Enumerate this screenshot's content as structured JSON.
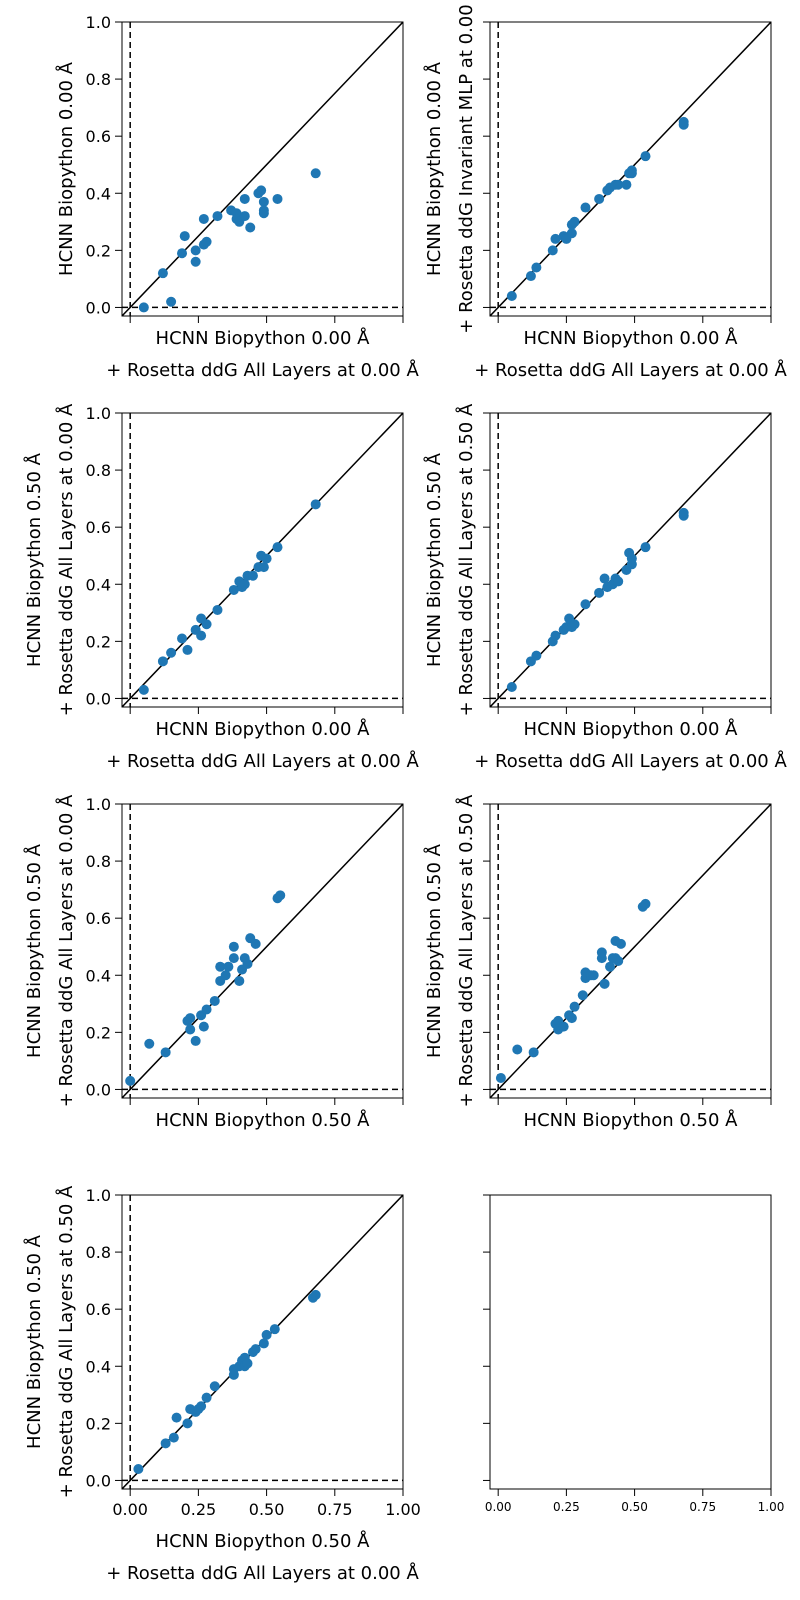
{
  "colors": {
    "point": "#1f77b4",
    "identity_line": "#000000",
    "zero_line": "#000000"
  },
  "chart_data": [
    {
      "type": "scatter",
      "xlabel": [
        "HCNN Biopython 0.00 Å",
        "+ Rosetta ddG All Layers at 0.00 Å"
      ],
      "ylabel": [
        "HCNN Biopython 0.00 Å"
      ],
      "xlim": [
        -0.03,
        1.0
      ],
      "ylim": [
        -0.03,
        1.0
      ],
      "xticks": [
        0.0,
        0.25,
        0.5,
        0.75,
        1.0
      ],
      "yticks": [
        0.0,
        0.2,
        0.4,
        0.6,
        0.8,
        1.0
      ],
      "show_x_ticklabels": false,
      "show_y_ticklabels": true,
      "points": [
        [
          0.05,
          0.0
        ],
        [
          0.12,
          0.12
        ],
        [
          0.15,
          0.02
        ],
        [
          0.19,
          0.19
        ],
        [
          0.2,
          0.25
        ],
        [
          0.24,
          0.2
        ],
        [
          0.24,
          0.16
        ],
        [
          0.27,
          0.22
        ],
        [
          0.27,
          0.31
        ],
        [
          0.28,
          0.23
        ],
        [
          0.32,
          0.32
        ],
        [
          0.37,
          0.34
        ],
        [
          0.39,
          0.33
        ],
        [
          0.39,
          0.31
        ],
        [
          0.4,
          0.3
        ],
        [
          0.42,
          0.32
        ],
        [
          0.42,
          0.38
        ],
        [
          0.44,
          0.28
        ],
        [
          0.47,
          0.4
        ],
        [
          0.48,
          0.41
        ],
        [
          0.49,
          0.37
        ],
        [
          0.49,
          0.34
        ],
        [
          0.49,
          0.33
        ],
        [
          0.54,
          0.38
        ],
        [
          0.68,
          0.47
        ]
      ]
    },
    {
      "type": "scatter",
      "xlabel": [
        "HCNN Biopython 0.00 Å",
        "+ Rosetta ddG All Layers at 0.00 Å"
      ],
      "ylabel": [
        "HCNN Biopython 0.00 Å",
        "+ Rosetta ddG Invariant MLP at 0.00"
      ],
      "xlim": [
        -0.03,
        1.0
      ],
      "ylim": [
        -0.03,
        1.0
      ],
      "xticks": [
        0.0,
        0.25,
        0.5,
        0.75,
        1.0
      ],
      "yticks": [
        0.0,
        0.2,
        0.4,
        0.6,
        0.8,
        1.0
      ],
      "show_x_ticklabels": false,
      "show_y_ticklabels": false,
      "points": [
        [
          0.05,
          0.04
        ],
        [
          0.12,
          0.11
        ],
        [
          0.14,
          0.14
        ],
        [
          0.2,
          0.2
        ],
        [
          0.21,
          0.24
        ],
        [
          0.24,
          0.25
        ],
        [
          0.25,
          0.24
        ],
        [
          0.27,
          0.26
        ],
        [
          0.27,
          0.29
        ],
        [
          0.28,
          0.3
        ],
        [
          0.32,
          0.35
        ],
        [
          0.37,
          0.38
        ],
        [
          0.4,
          0.41
        ],
        [
          0.41,
          0.42
        ],
        [
          0.43,
          0.43
        ],
        [
          0.44,
          0.43
        ],
        [
          0.47,
          0.43
        ],
        [
          0.48,
          0.47
        ],
        [
          0.49,
          0.48
        ],
        [
          0.49,
          0.47
        ],
        [
          0.54,
          0.53
        ],
        [
          0.68,
          0.64
        ],
        [
          0.68,
          0.65
        ]
      ]
    },
    {
      "type": "scatter",
      "xlabel": [
        "HCNN Biopython 0.00 Å",
        "+ Rosetta ddG All Layers at 0.00 Å"
      ],
      "ylabel": [
        "HCNN Biopython 0.50 Å",
        "+ Rosetta ddG All Layers at 0.00 Å"
      ],
      "xlim": [
        -0.03,
        1.0
      ],
      "ylim": [
        -0.03,
        1.0
      ],
      "xticks": [
        0.0,
        0.25,
        0.5,
        0.75,
        1.0
      ],
      "yticks": [
        0.0,
        0.2,
        0.4,
        0.6,
        0.8,
        1.0
      ],
      "show_x_ticklabels": false,
      "show_y_ticklabels": true,
      "points": [
        [
          0.05,
          0.03
        ],
        [
          0.12,
          0.13
        ],
        [
          0.15,
          0.16
        ],
        [
          0.19,
          0.21
        ],
        [
          0.21,
          0.17
        ],
        [
          0.24,
          0.24
        ],
        [
          0.26,
          0.22
        ],
        [
          0.26,
          0.28
        ],
        [
          0.28,
          0.26
        ],
        [
          0.32,
          0.31
        ],
        [
          0.38,
          0.38
        ],
        [
          0.4,
          0.41
        ],
        [
          0.41,
          0.39
        ],
        [
          0.42,
          0.4
        ],
        [
          0.43,
          0.43
        ],
        [
          0.45,
          0.43
        ],
        [
          0.47,
          0.46
        ],
        [
          0.48,
          0.5
        ],
        [
          0.49,
          0.46
        ],
        [
          0.5,
          0.49
        ],
        [
          0.54,
          0.53
        ],
        [
          0.68,
          0.68
        ]
      ]
    },
    {
      "type": "scatter",
      "xlabel": [
        "HCNN Biopython 0.00 Å",
        "+ Rosetta ddG All Layers at 0.00 Å"
      ],
      "ylabel": [
        "HCNN Biopython 0.50 Å",
        "+ Rosetta ddG All Layers at 0.50 Å"
      ],
      "xlim": [
        -0.03,
        1.0
      ],
      "ylim": [
        -0.03,
        1.0
      ],
      "xticks": [
        0.0,
        0.25,
        0.5,
        0.75,
        1.0
      ],
      "yticks": [
        0.0,
        0.2,
        0.4,
        0.6,
        0.8,
        1.0
      ],
      "show_x_ticklabels": false,
      "show_y_ticklabels": false,
      "points": [
        [
          0.05,
          0.04
        ],
        [
          0.12,
          0.13
        ],
        [
          0.14,
          0.15
        ],
        [
          0.2,
          0.2
        ],
        [
          0.21,
          0.22
        ],
        [
          0.24,
          0.24
        ],
        [
          0.25,
          0.25
        ],
        [
          0.26,
          0.28
        ],
        [
          0.27,
          0.25
        ],
        [
          0.28,
          0.26
        ],
        [
          0.32,
          0.33
        ],
        [
          0.37,
          0.37
        ],
        [
          0.39,
          0.42
        ],
        [
          0.4,
          0.39
        ],
        [
          0.42,
          0.4
        ],
        [
          0.43,
          0.42
        ],
        [
          0.44,
          0.41
        ],
        [
          0.47,
          0.45
        ],
        [
          0.48,
          0.51
        ],
        [
          0.49,
          0.47
        ],
        [
          0.49,
          0.49
        ],
        [
          0.54,
          0.53
        ],
        [
          0.68,
          0.64
        ],
        [
          0.68,
          0.65
        ]
      ]
    },
    {
      "type": "scatter",
      "xlabel": [
        "HCNN Biopython 0.50 Å"
      ],
      "ylabel": [
        "HCNN Biopython 0.50 Å",
        "+ Rosetta ddG All Layers at 0.00 Å"
      ],
      "xlim": [
        -0.03,
        1.0
      ],
      "ylim": [
        -0.03,
        1.0
      ],
      "xticks": [
        0.0,
        0.25,
        0.5,
        0.75,
        1.0
      ],
      "yticks": [
        0.0,
        0.2,
        0.4,
        0.6,
        0.8,
        1.0
      ],
      "show_x_ticklabels": false,
      "show_y_ticklabels": true,
      "points": [
        [
          0.0,
          0.03
        ],
        [
          0.07,
          0.16
        ],
        [
          0.13,
          0.13
        ],
        [
          0.21,
          0.24
        ],
        [
          0.22,
          0.25
        ],
        [
          0.22,
          0.21
        ],
        [
          0.24,
          0.17
        ],
        [
          0.26,
          0.26
        ],
        [
          0.27,
          0.22
        ],
        [
          0.28,
          0.28
        ],
        [
          0.31,
          0.31
        ],
        [
          0.33,
          0.38
        ],
        [
          0.33,
          0.43
        ],
        [
          0.35,
          0.4
        ],
        [
          0.36,
          0.43
        ],
        [
          0.38,
          0.46
        ],
        [
          0.38,
          0.5
        ],
        [
          0.4,
          0.38
        ],
        [
          0.41,
          0.42
        ],
        [
          0.42,
          0.46
        ],
        [
          0.43,
          0.44
        ],
        [
          0.44,
          0.53
        ],
        [
          0.46,
          0.51
        ],
        [
          0.54,
          0.67
        ],
        [
          0.55,
          0.68
        ]
      ]
    },
    {
      "type": "scatter",
      "xlabel": [
        "HCNN Biopython 0.50 Å"
      ],
      "ylabel": [
        "HCNN Biopython 0.50 Å",
        "+ Rosetta ddG All Layers at 0.50 Å"
      ],
      "xlim": [
        -0.03,
        1.0
      ],
      "ylim": [
        -0.03,
        1.0
      ],
      "xticks": [
        0.0,
        0.25,
        0.5,
        0.75,
        1.0
      ],
      "yticks": [
        0.0,
        0.2,
        0.4,
        0.6,
        0.8,
        1.0
      ],
      "show_x_ticklabels": false,
      "show_y_ticklabels": false,
      "points": [
        [
          0.01,
          0.04
        ],
        [
          0.07,
          0.14
        ],
        [
          0.13,
          0.13
        ],
        [
          0.21,
          0.23
        ],
        [
          0.22,
          0.24
        ],
        [
          0.22,
          0.21
        ],
        [
          0.24,
          0.22
        ],
        [
          0.26,
          0.26
        ],
        [
          0.27,
          0.25
        ],
        [
          0.28,
          0.29
        ],
        [
          0.31,
          0.33
        ],
        [
          0.32,
          0.39
        ],
        [
          0.32,
          0.41
        ],
        [
          0.34,
          0.4
        ],
        [
          0.35,
          0.4
        ],
        [
          0.38,
          0.46
        ],
        [
          0.38,
          0.48
        ],
        [
          0.39,
          0.37
        ],
        [
          0.41,
          0.43
        ],
        [
          0.42,
          0.46
        ],
        [
          0.43,
          0.46
        ],
        [
          0.43,
          0.52
        ],
        [
          0.44,
          0.45
        ],
        [
          0.45,
          0.51
        ],
        [
          0.53,
          0.64
        ],
        [
          0.54,
          0.65
        ]
      ]
    },
    {
      "type": "scatter",
      "xlabel": [
        "HCNN Biopython 0.50 Å",
        "+ Rosetta ddG All Layers at 0.00 Å"
      ],
      "ylabel": [
        "HCNN Biopython 0.50 Å",
        "+ Rosetta ddG All Layers at 0.50 Å"
      ],
      "xlim": [
        -0.03,
        1.0
      ],
      "ylim": [
        -0.03,
        1.0
      ],
      "xticks": [
        0.0,
        0.25,
        0.5,
        0.75,
        1.0
      ],
      "yticks": [
        0.0,
        0.2,
        0.4,
        0.6,
        0.8,
        1.0
      ],
      "show_x_ticklabels": true,
      "show_y_ticklabels": true,
      "points": [
        [
          0.03,
          0.04
        ],
        [
          0.13,
          0.13
        ],
        [
          0.16,
          0.15
        ],
        [
          0.17,
          0.22
        ],
        [
          0.21,
          0.2
        ],
        [
          0.22,
          0.25
        ],
        [
          0.24,
          0.24
        ],
        [
          0.25,
          0.25
        ],
        [
          0.26,
          0.26
        ],
        [
          0.28,
          0.29
        ],
        [
          0.31,
          0.33
        ],
        [
          0.38,
          0.37
        ],
        [
          0.38,
          0.39
        ],
        [
          0.4,
          0.4
        ],
        [
          0.41,
          0.42
        ],
        [
          0.42,
          0.43
        ],
        [
          0.42,
          0.4
        ],
        [
          0.43,
          0.41
        ],
        [
          0.45,
          0.45
        ],
        [
          0.46,
          0.46
        ],
        [
          0.49,
          0.48
        ],
        [
          0.5,
          0.51
        ],
        [
          0.53,
          0.53
        ],
        [
          0.67,
          0.64
        ],
        [
          0.68,
          0.65
        ]
      ]
    },
    {
      "type": "scatter",
      "xlabel": [],
      "ylabel": [],
      "xlim": [
        -0.03,
        1.0
      ],
      "ylim": [
        -0.03,
        1.0
      ],
      "xticks": [
        0.0,
        0.25,
        0.5,
        0.75,
        1.0
      ],
      "yticks": [
        0.0,
        0.2,
        0.4,
        0.6,
        0.8,
        1.0
      ],
      "show_x_ticklabels": true,
      "show_y_ticklabels": false,
      "empty": true,
      "points": []
    }
  ]
}
